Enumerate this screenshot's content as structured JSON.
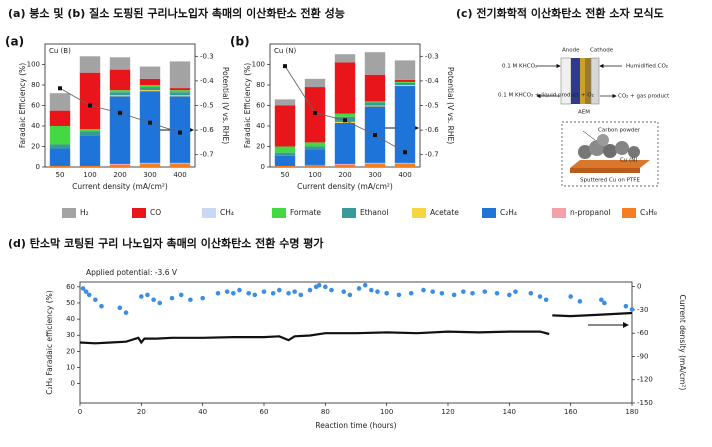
{
  "headings": {
    "ab": "(a) 붕소 및 (b) 질소 도핑된 구리나노입자 촉매의 이산화탄소 전환 성능",
    "c": "(c) 전기화학적 이산화탄소 전환 소자 모식도",
    "d": "(d) 탄소막 코팅된 구리 나노입자 촉매의 이산화탄소 전환 수명 평가"
  },
  "diagram": {
    "labels": [
      "0.1 M KHCO₃",
      "Anode",
      "Cathode",
      "Humidified CO₂",
      "0.1 M KHCO₃ + liquid product + O₂",
      "AEM",
      "CO₂ + gas product",
      "Carbon powder",
      "Cu (N)",
      "Sputtered Cu on PTFE"
    ]
  },
  "chart_data": [
    {
      "type": "stacked_bar_line",
      "panel": "(a)",
      "inset": "Cu (B)",
      "categories": [
        "50",
        "100",
        "200",
        "300",
        "400"
      ],
      "xlabel": "Current density (mA/cm²)",
      "ylabel": "Faradaic Efficiency (%)",
      "y2label": "Potential (V vs. RHE)",
      "ylim": [
        0,
        120
      ],
      "yticks": [
        0,
        20,
        40,
        60,
        80,
        100
      ],
      "y2lim": [
        -0.75,
        -0.25
      ],
      "y2ticks": [
        -0.3,
        -0.4,
        -0.5,
        -0.6,
        -0.7
      ],
      "series": [
        {
          "name": "H₂",
          "color": "#a3a3a3",
          "values": [
            17,
            16,
            12,
            12,
            26
          ]
        },
        {
          "name": "CO",
          "color": "#e8161b",
          "values": [
            15,
            55,
            20,
            6,
            2
          ]
        },
        {
          "name": "CH₄",
          "color": "#c8d8f5",
          "values": [
            0,
            0,
            0,
            0,
            0
          ]
        },
        {
          "name": "Formate",
          "color": "#44d944",
          "values": [
            18,
            2,
            2,
            2,
            2
          ]
        },
        {
          "name": "Ethanol",
          "color": "#3a9a9a",
          "values": [
            4,
            4,
            3,
            3,
            3
          ]
        },
        {
          "name": "Acetate",
          "color": "#f5d540",
          "values": [
            0,
            0,
            1,
            1,
            1
          ]
        },
        {
          "name": "C₂H₄",
          "color": "#1e74d8",
          "values": [
            17,
            30,
            66,
            70,
            65
          ]
        },
        {
          "name": "n-propanol",
          "color": "#f4a0a8",
          "values": [
            0,
            0,
            1,
            1,
            1
          ]
        },
        {
          "name": "C₃H₈",
          "color": "#f57f20",
          "values": [
            1,
            1,
            2,
            3,
            3
          ]
        }
      ],
      "line": {
        "axis": "y2",
        "color": "#666666",
        "values": [
          -0.43,
          -0.5,
          -0.53,
          -0.57,
          -0.61
        ]
      }
    },
    {
      "type": "stacked_bar_line",
      "panel": "(b)",
      "inset": "Cu (N)",
      "categories": [
        "50",
        "100",
        "200",
        "300",
        "400"
      ],
      "xlabel": "Current density (mA/cm²)",
      "ylabel": "Faradaic Efficiency (%)",
      "y2label": "Potential (V vs. RHE)",
      "ylim": [
        0,
        120
      ],
      "yticks": [
        0,
        20,
        40,
        60,
        80,
        100
      ],
      "y2lim": [
        -0.75,
        -0.25
      ],
      "y2ticks": [
        -0.3,
        -0.4,
        -0.5,
        -0.6,
        -0.7
      ],
      "series": [
        {
          "color": "#a3a3a3",
          "values": [
            6,
            8,
            8,
            22,
            19
          ]
        },
        {
          "color": "#e8161b",
          "values": [
            40,
            54,
            50,
            26,
            2
          ]
        },
        {
          "color": "#c8d8f5",
          "values": [
            0,
            0,
            0,
            0,
            0
          ]
        },
        {
          "color": "#44d944",
          "values": [
            6,
            4,
            3,
            1,
            1
          ]
        },
        {
          "color": "#3a9a9a",
          "values": [
            3,
            3,
            5,
            3,
            2
          ]
        },
        {
          "color": "#f5d540",
          "values": [
            0,
            0,
            1,
            1,
            1
          ]
        },
        {
          "color": "#1e74d8",
          "values": [
            10,
            15,
            40,
            55,
            75
          ]
        },
        {
          "color": "#f4a0a8",
          "values": [
            0,
            0,
            1,
            1,
            1
          ]
        },
        {
          "color": "#f57f20",
          "values": [
            1,
            2,
            2,
            3,
            3
          ]
        }
      ],
      "line": {
        "axis": "y2",
        "color": "#666666",
        "values": [
          -0.34,
          -0.53,
          -0.56,
          -0.62,
          -0.69
        ]
      }
    },
    {
      "type": "scatter_line",
      "panel": "(d)",
      "annotation": "Applied potential: -3.6 V",
      "xlabel": "Reaction time (hours)",
      "ylabel": "C₂H₄ Faradaic efficiency (%)",
      "y2label": "Current density (mA/cm²)",
      "xlim": [
        0,
        180
      ],
      "xticks": [
        0,
        20,
        40,
        60,
        80,
        100,
        120,
        140,
        160,
        180
      ],
      "ylim": [
        -12,
        63
      ],
      "yticks": [
        0,
        10,
        20,
        30,
        40,
        50,
        60
      ],
      "y2lim": [
        -150,
        6
      ],
      "y2ticks": [
        0,
        -30,
        -60,
        -90,
        -120,
        -150
      ],
      "scatter": {
        "color": "#3a8ee6",
        "x": [
          1,
          2,
          3,
          5,
          7,
          13,
          15,
          20,
          22,
          24,
          26,
          30,
          33,
          36,
          40,
          45,
          48,
          50,
          52,
          55,
          57,
          60,
          63,
          65,
          68,
          70,
          72,
          75,
          77,
          78,
          80,
          82,
          86,
          88,
          91,
          93,
          95,
          97,
          100,
          104,
          108,
          112,
          115,
          118,
          122,
          125,
          128,
          132,
          136,
          140,
          142,
          147,
          150,
          152,
          160,
          163,
          170,
          171,
          178,
          180
        ],
        "values": [
          59,
          57,
          55,
          52,
          48,
          47,
          44,
          54,
          55,
          52,
          50,
          53,
          55,
          52,
          53,
          56,
          57,
          56,
          58,
          56,
          55,
          57,
          56,
          58,
          56,
          57,
          55,
          58,
          60,
          61,
          60,
          58,
          57,
          55,
          59,
          61,
          58,
          57,
          56,
          55,
          56,
          58,
          57,
          56,
          55,
          57,
          56,
          57,
          56,
          55,
          57,
          56,
          54,
          52,
          54,
          51,
          52,
          50,
          48,
          46
        ]
      },
      "line": {
        "axis": "y2",
        "color": "#111111",
        "x": [
          0,
          5,
          10,
          15,
          19,
          20,
          21,
          25,
          30,
          40,
          50,
          60,
          65,
          68,
          70,
          75,
          80,
          90,
          100,
          110,
          120,
          130,
          140,
          150,
          153,
          153.5,
          154,
          160,
          170,
          180
        ],
        "values": [
          -72,
          -73,
          -72,
          -71,
          -66,
          -72,
          -67,
          -67,
          -66,
          -66,
          -65,
          -65,
          -64,
          -69,
          -64,
          -63,
          -60,
          -60,
          -59,
          -60,
          -58,
          -59,
          -58,
          -58,
          -61,
          null,
          -37,
          -38,
          -36,
          -34
        ]
      }
    }
  ]
}
